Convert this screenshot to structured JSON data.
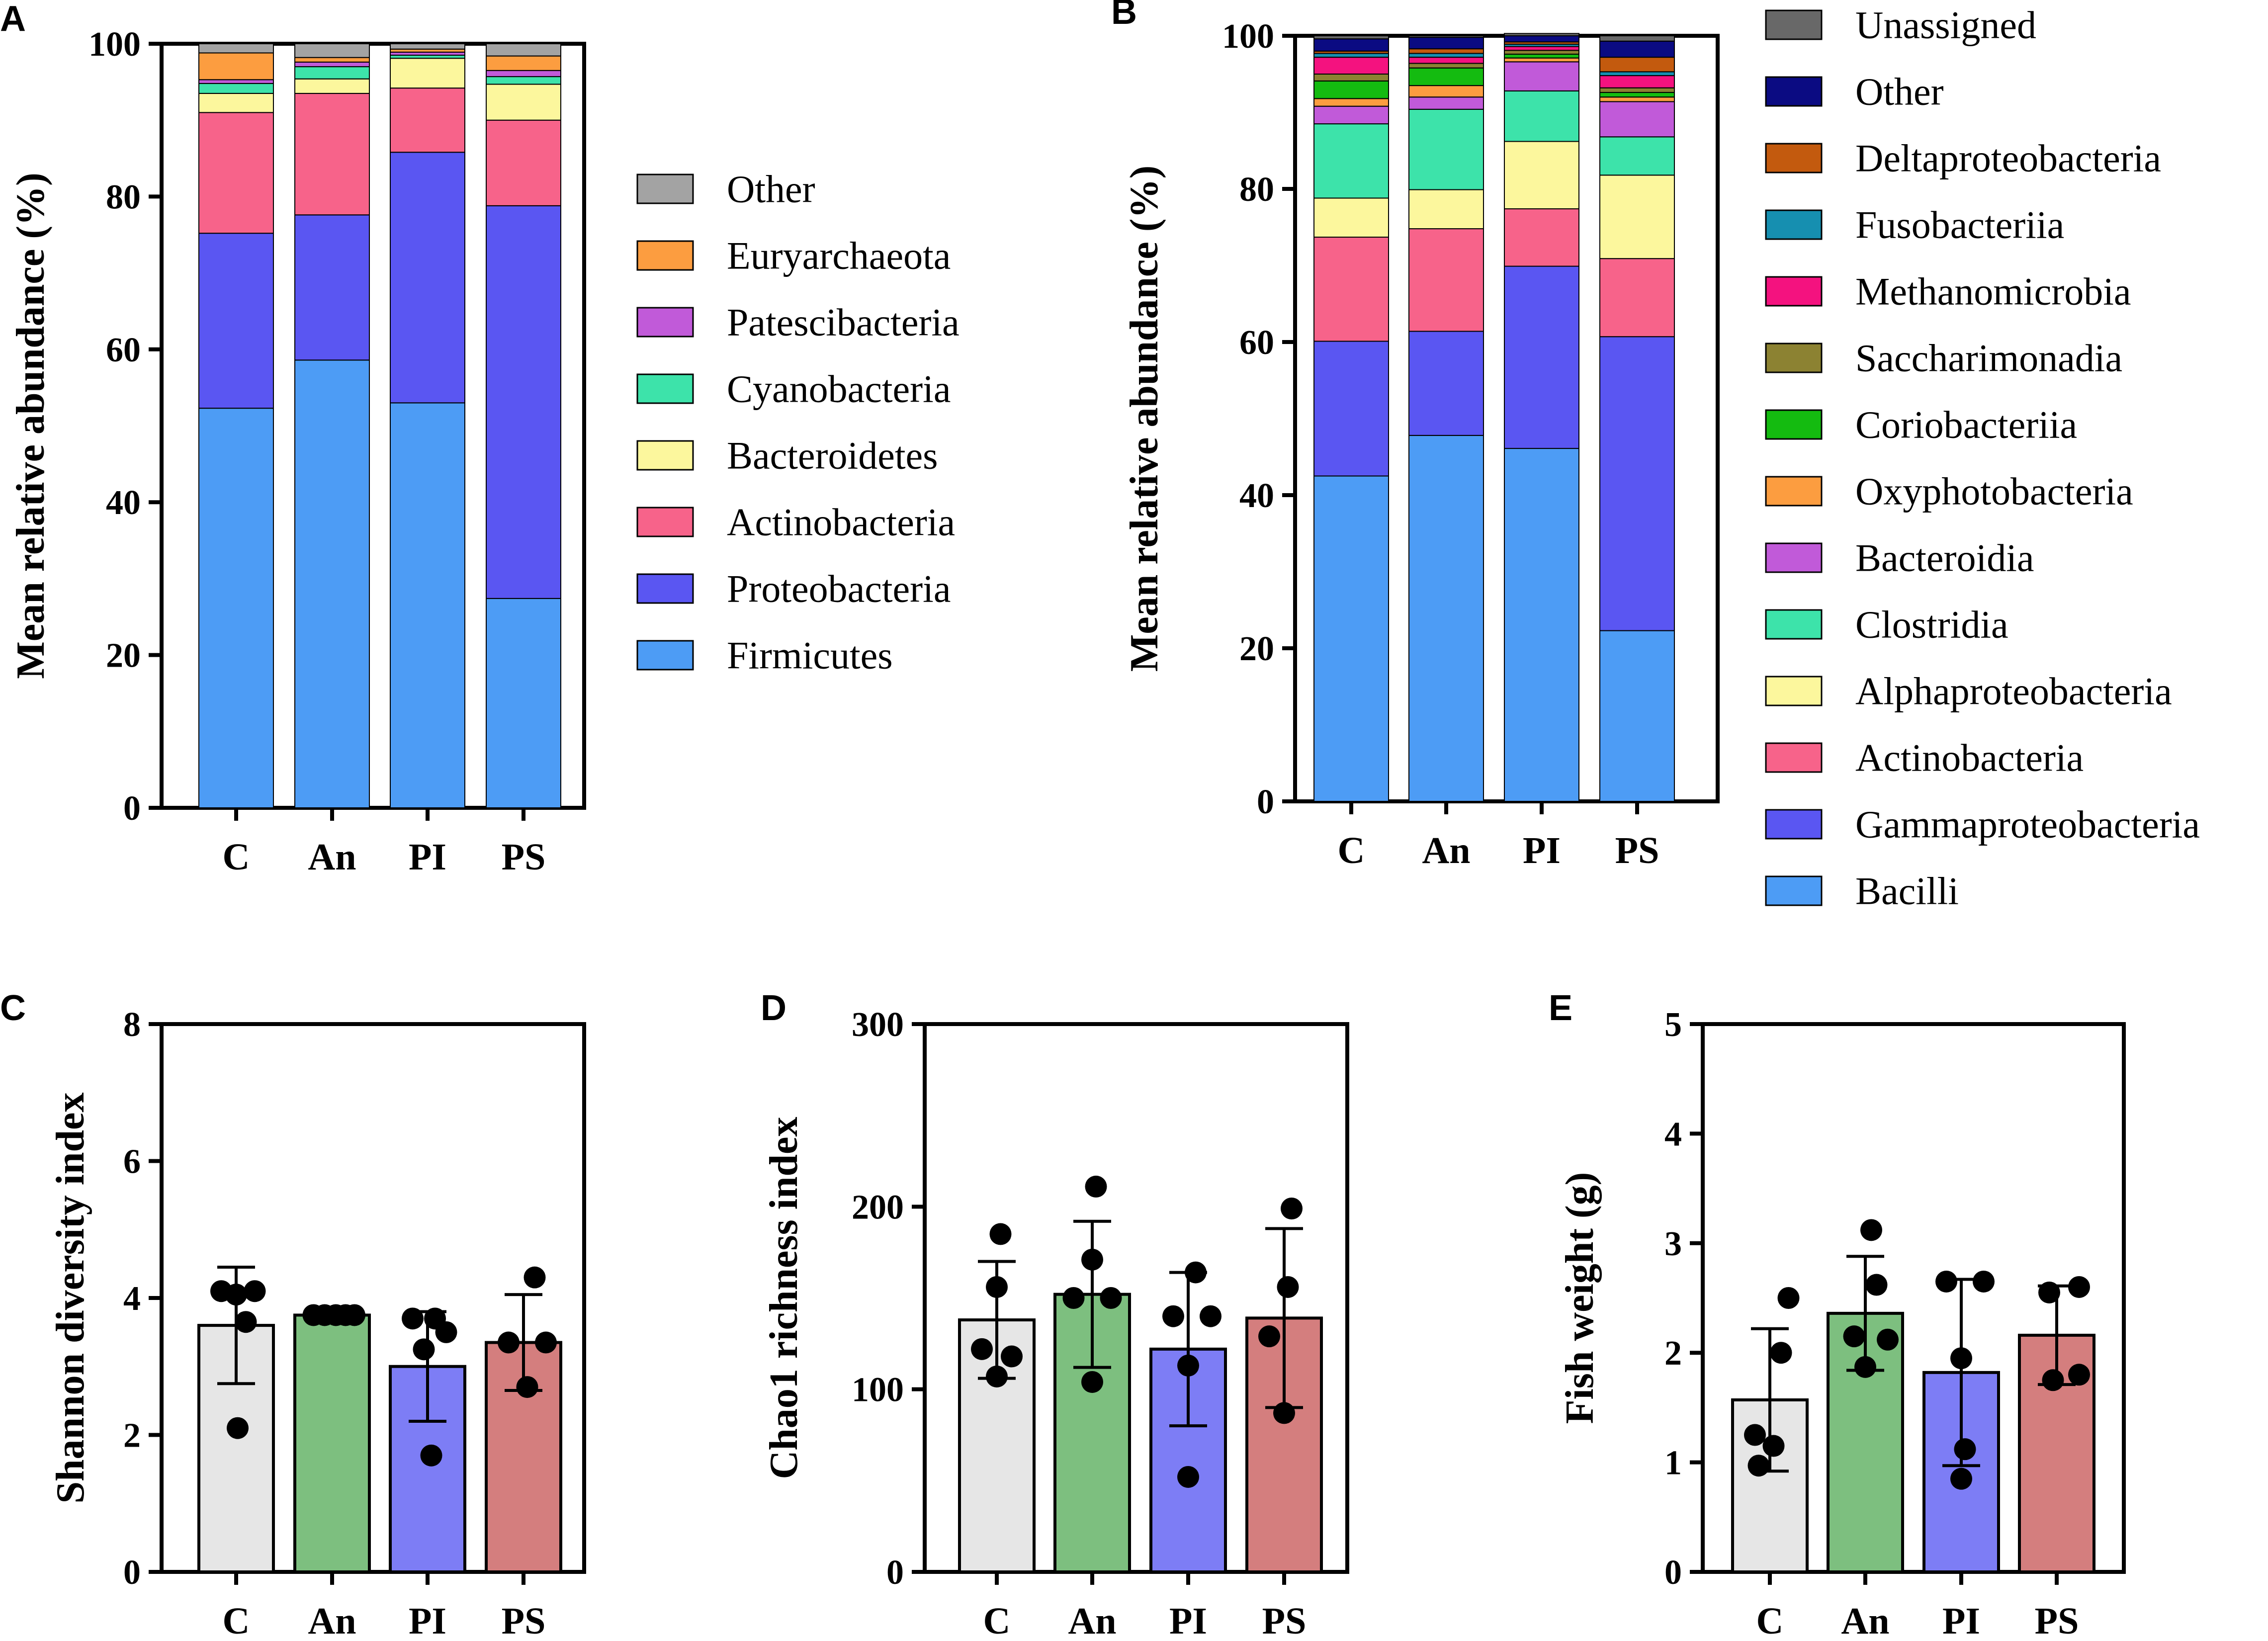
{
  "colors": {
    "Firmicutes": "#4d9cf5",
    "Proteobacteria": "#5a56f2",
    "Actinobacteria": "#f7638a",
    "Bacteroidetes": "#fcf79d",
    "Cyanobacteria": "#3de3aa",
    "Patescibacteria": "#c15ad9",
    "Euryarchaeota": "#fc9d40",
    "OtherA": "#a3a3a3",
    "Bacilli": "#4d9cf5",
    "Gammaproteobacteria": "#5a56f2",
    "Alphaproteobacteria": "#fcf79d",
    "Clostridia": "#3de3aa",
    "Bacteroidia": "#c15ad9",
    "Oxyphotobacteria": "#fc9d40",
    "Coriobacteriia": "#14bb10",
    "Saccharimonadia": "#8c8232",
    "Methanomicrobia": "#f4127f",
    "Fusobacteriia": "#168fb0",
    "Deltaproteobacteria": "#c35a0e",
    "OtherB": "#0b0b82",
    "Unassigned": "#686868",
    "bar_C": "#e6e6e6",
    "bar_An": "#7dbf7f",
    "bar_PI": "#7d7df5",
    "bar_PS": "#d47e7e"
  },
  "chart_data": [
    {
      "panel": "A",
      "type": "bar",
      "stacked": true,
      "categories": [
        "C",
        "An",
        "PI",
        "PS"
      ],
      "ylabel": "Mean relative abundance (%)",
      "ylim": [
        0,
        100
      ],
      "yticks": [
        0,
        20,
        40,
        60,
        80,
        100
      ],
      "legend_position": "right",
      "series": [
        {
          "name": "Firmicutes",
          "color_key": "Firmicutes",
          "values": [
            52.3,
            58.6,
            53.0,
            27.4
          ]
        },
        {
          "name": "Proteobacteria",
          "color_key": "Proteobacteria",
          "values": [
            22.9,
            19.0,
            32.8,
            51.4
          ]
        },
        {
          "name": "Actinobacteria",
          "color_key": "Actinobacteria",
          "values": [
            15.8,
            15.9,
            8.4,
            11.2
          ]
        },
        {
          "name": "Bacteroidetes",
          "color_key": "Bacteroidetes",
          "values": [
            2.5,
            1.9,
            3.9,
            4.7
          ]
        },
        {
          "name": "Cyanobacteria",
          "color_key": "Cyanobacteria",
          "values": [
            1.3,
            1.6,
            0.4,
            1.0
          ]
        },
        {
          "name": "Patescibacteria",
          "color_key": "Patescibacteria",
          "values": [
            0.5,
            0.6,
            0.4,
            0.8
          ]
        },
        {
          "name": "Euryarchaeota",
          "color_key": "Euryarchaeota",
          "values": [
            3.5,
            0.6,
            0.4,
            1.9
          ]
        },
        {
          "name": "Other",
          "color_key": "OtherA",
          "values": [
            1.2,
            1.8,
            0.7,
            1.6
          ]
        }
      ]
    },
    {
      "panel": "B",
      "type": "bar",
      "stacked": true,
      "categories": [
        "C",
        "An",
        "PI",
        "PS"
      ],
      "ylabel": "Mean relative abundance (%)",
      "ylim": [
        0,
        100
      ],
      "yticks": [
        0,
        20,
        40,
        60,
        80,
        100
      ],
      "legend_position": "right",
      "series": [
        {
          "name": "Bacilli",
          "color_key": "Bacilli",
          "values": [
            42.5,
            47.8,
            46.1,
            22.3
          ]
        },
        {
          "name": "Gammaproteobacteria",
          "color_key": "Gammaproteobacteria",
          "values": [
            17.6,
            13.6,
            23.8,
            38.4
          ]
        },
        {
          "name": "Actinobacteria",
          "color_key": "Actinobacteria",
          "values": [
            13.6,
            13.4,
            7.5,
            10.2
          ]
        },
        {
          "name": "Alphaproteobacteria",
          "color_key": "Alphaproteobacteria",
          "values": [
            5.1,
            5.1,
            8.8,
            10.9
          ]
        },
        {
          "name": "Clostridia",
          "color_key": "Clostridia",
          "values": [
            9.7,
            10.5,
            6.6,
            5.0
          ]
        },
        {
          "name": "Bacteroidia",
          "color_key": "Bacteroidia",
          "values": [
            2.3,
            1.6,
            3.8,
            4.6
          ]
        },
        {
          "name": "Oxyphotobacteria",
          "color_key": "Oxyphotobacteria",
          "values": [
            1.0,
            1.5,
            0.5,
            0.6
          ]
        },
        {
          "name": "Coriobacteriia",
          "color_key": "Coriobacteriia",
          "values": [
            2.3,
            2.3,
            0.5,
            0.6
          ]
        },
        {
          "name": "Saccharimonadia",
          "color_key": "Saccharimonadia",
          "values": [
            0.9,
            0.6,
            0.5,
            0.6
          ]
        },
        {
          "name": "Methanomicrobia",
          "color_key": "Methanomicrobia",
          "values": [
            2.2,
            0.8,
            0.5,
            1.6
          ]
        },
        {
          "name": "Fusobacteriia",
          "color_key": "Fusobacteriia",
          "values": [
            0.5,
            0.5,
            0.3,
            0.5
          ]
        },
        {
          "name": "Deltaproteobacteria",
          "color_key": "Deltaproteobacteria",
          "values": [
            0.3,
            0.6,
            0.3,
            1.9
          ]
        },
        {
          "name": "Other",
          "color_key": "OtherB",
          "values": [
            1.6,
            1.5,
            0.8,
            2.1
          ]
        },
        {
          "name": "Unassigned",
          "color_key": "Unassigned",
          "values": [
            0.4,
            0.2,
            0.3,
            0.7
          ]
        }
      ]
    },
    {
      "panel": "C",
      "type": "bar",
      "subtype": "bar_with_points_and_sd",
      "categories": [
        "C",
        "An",
        "PI",
        "PS"
      ],
      "ylabel": "Shannon diversity index",
      "ylim": [
        0,
        8
      ],
      "yticks": [
        0,
        2,
        4,
        6,
        8
      ],
      "values": [
        3.6,
        3.75,
        3.0,
        3.35
      ],
      "sd": [
        0.85,
        0.1,
        0.8,
        0.7
      ],
      "bar_color_keys": [
        "bar_C",
        "bar_An",
        "bar_PI",
        "bar_PS"
      ],
      "points": [
        [
          {
            "dx": -0.2,
            "y": 4.1
          },
          {
            "dx": 0.0,
            "y": 4.05
          },
          {
            "dx": 0.25,
            "y": 4.1
          },
          {
            "dx": 0.13,
            "y": 3.65
          },
          {
            "dx": 0.02,
            "y": 2.1
          }
        ],
        [
          {
            "dx": -0.25,
            "y": 3.75
          },
          {
            "dx": -0.1,
            "y": 3.75
          },
          {
            "dx": 0.05,
            "y": 3.75
          },
          {
            "dx": 0.18,
            "y": 3.75
          },
          {
            "dx": 0.3,
            "y": 3.75
          }
        ],
        [
          {
            "dx": -0.2,
            "y": 3.7
          },
          {
            "dx": 0.1,
            "y": 3.7
          },
          {
            "dx": -0.05,
            "y": 3.25
          },
          {
            "dx": 0.25,
            "y": 3.5
          },
          {
            "dx": 0.05,
            "y": 1.7
          }
        ],
        [
          {
            "dx": 0.15,
            "y": 4.3
          },
          {
            "dx": -0.2,
            "y": 3.35
          },
          {
            "dx": 0.3,
            "y": 3.35
          },
          {
            "dx": 0.05,
            "y": 2.7
          }
        ]
      ]
    },
    {
      "panel": "D",
      "type": "bar",
      "subtype": "bar_with_points_and_sd",
      "categories": [
        "C",
        "An",
        "PI",
        "PS"
      ],
      "ylabel": "Chao1 richness index",
      "ylim": [
        0,
        300
      ],
      "yticks": [
        0,
        100,
        200,
        300
      ],
      "values": [
        138,
        152,
        122,
        139
      ],
      "sd": [
        32,
        40,
        42,
        49
      ],
      "bar_color_keys": [
        "bar_C",
        "bar_An",
        "bar_PI",
        "bar_PS"
      ],
      "points": [
        [
          {
            "dx": 0.05,
            "y": 185
          },
          {
            "dx": 0.0,
            "y": 156
          },
          {
            "dx": -0.2,
            "y": 122
          },
          {
            "dx": 0.2,
            "y": 118
          },
          {
            "dx": 0.0,
            "y": 107
          }
        ],
        [
          {
            "dx": 0.05,
            "y": 211
          },
          {
            "dx": 0.0,
            "y": 171
          },
          {
            "dx": -0.25,
            "y": 150
          },
          {
            "dx": 0.25,
            "y": 150
          },
          {
            "dx": 0.0,
            "y": 104
          }
        ],
        [
          {
            "dx": 0.1,
            "y": 164
          },
          {
            "dx": -0.2,
            "y": 140
          },
          {
            "dx": 0.3,
            "y": 140
          },
          {
            "dx": 0.0,
            "y": 113
          },
          {
            "dx": 0.0,
            "y": 52
          }
        ],
        [
          {
            "dx": 0.1,
            "y": 199
          },
          {
            "dx": 0.05,
            "y": 156
          },
          {
            "dx": -0.2,
            "y": 129
          },
          {
            "dx": 0.0,
            "y": 87
          }
        ]
      ]
    },
    {
      "panel": "E",
      "type": "bar",
      "subtype": "bar_with_points_and_sd",
      "categories": [
        "C",
        "An",
        "PI",
        "PS"
      ],
      "ylabel": "Fish weight (g)",
      "ylim": [
        0,
        5
      ],
      "yticks": [
        0,
        1,
        2,
        3,
        4,
        5
      ],
      "values": [
        1.57,
        2.36,
        1.82,
        2.16
      ],
      "sd": [
        0.65,
        0.52,
        0.85,
        0.45
      ],
      "bar_color_keys": [
        "bar_C",
        "bar_An",
        "bar_PI",
        "bar_PS"
      ],
      "points": [
        [
          {
            "dx": 0.25,
            "y": 2.5
          },
          {
            "dx": 0.15,
            "y": 2.0
          },
          {
            "dx": -0.2,
            "y": 1.25
          },
          {
            "dx": 0.05,
            "y": 1.15
          },
          {
            "dx": -0.15,
            "y": 0.97
          }
        ],
        [
          {
            "dx": 0.08,
            "y": 3.12
          },
          {
            "dx": 0.15,
            "y": 2.62
          },
          {
            "dx": -0.15,
            "y": 2.15
          },
          {
            "dx": 0.3,
            "y": 2.12
          },
          {
            "dx": 0.0,
            "y": 1.87
          }
        ],
        [
          {
            "dx": -0.2,
            "y": 2.65
          },
          {
            "dx": 0.3,
            "y": 2.65
          },
          {
            "dx": 0.0,
            "y": 1.95
          },
          {
            "dx": 0.05,
            "y": 1.12
          },
          {
            "dx": 0.0,
            "y": 0.85
          }
        ],
        [
          {
            "dx": -0.1,
            "y": 2.55
          },
          {
            "dx": 0.3,
            "y": 2.6
          },
          {
            "dx": -0.05,
            "y": 1.75
          },
          {
            "dx": 0.3,
            "y": 1.8
          }
        ]
      ]
    }
  ]
}
